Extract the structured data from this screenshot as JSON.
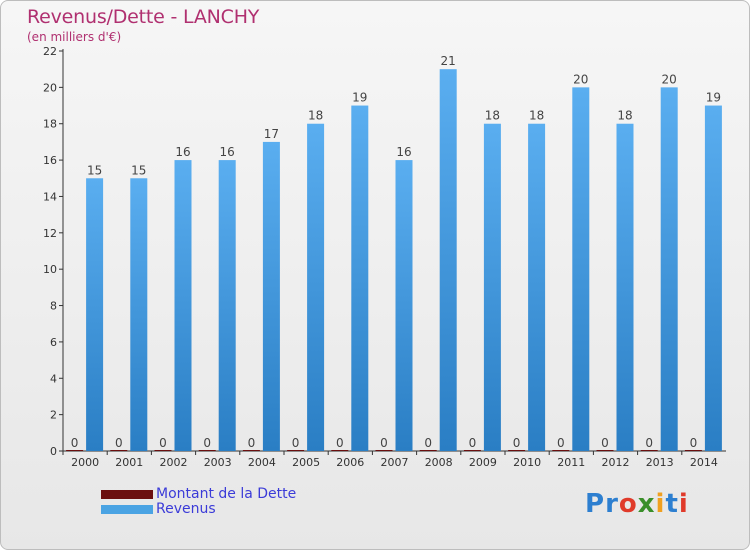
{
  "chart_data": {
    "type": "bar",
    "title": "Revenus/Dette - LANCHY",
    "subtitle": "(en milliers d'€)",
    "categories": [
      "2000",
      "2001",
      "2002",
      "2003",
      "2004",
      "2005",
      "2006",
      "2007",
      "2008",
      "2009",
      "2010",
      "2011",
      "2012",
      "2013",
      "2014"
    ],
    "series": [
      {
        "name": "Montant de la Dette",
        "color": "#6b0f0f",
        "values": [
          0,
          0,
          0,
          0,
          0,
          0,
          0,
          0,
          0,
          0,
          0,
          0,
          0,
          0,
          0
        ]
      },
      {
        "name": "Revenus",
        "color": "#4aa3e3",
        "values": [
          15,
          15,
          16,
          16,
          17,
          18,
          19,
          16,
          21,
          18,
          18,
          20,
          18,
          20,
          19
        ]
      }
    ],
    "ylim": [
      0,
      22
    ],
    "yticks": [
      0,
      2,
      4,
      6,
      8,
      10,
      12,
      14,
      16,
      18,
      20,
      22
    ],
    "grid": false,
    "legend_position": "bottom-left"
  },
  "logo": {
    "letters": [
      "P",
      "r",
      "o",
      "x",
      "i",
      "t",
      "i"
    ],
    "colors": [
      "#2d7fd0",
      "#2d7fd0",
      "#e03a2a",
      "#3a8f2a",
      "#f0a020",
      "#2d7fd0",
      "#e03a2a"
    ]
  }
}
